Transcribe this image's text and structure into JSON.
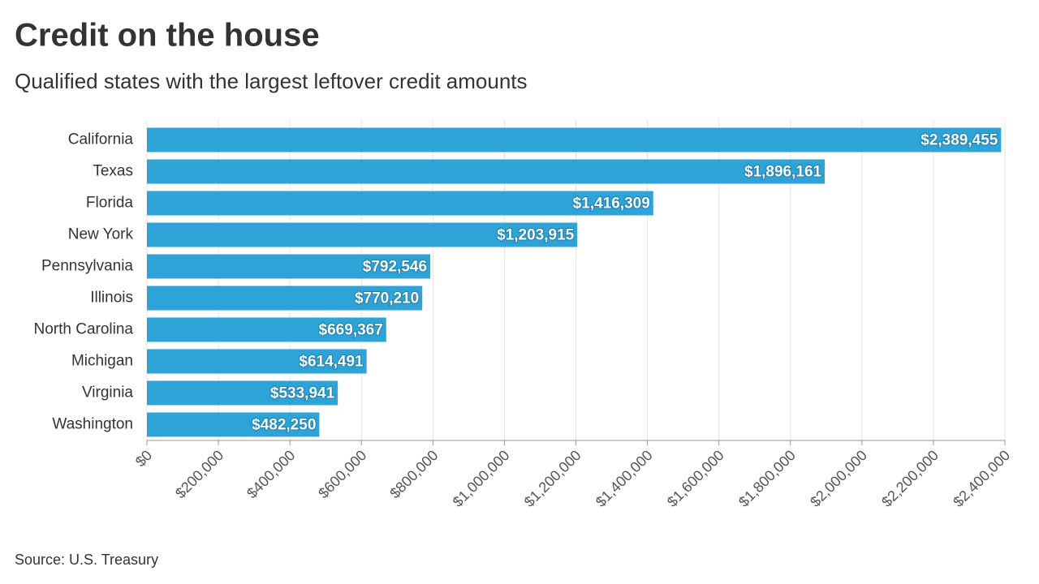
{
  "chart_data": {
    "type": "bar",
    "title": "Credit on the house",
    "subtitle": "Qualified states with the largest leftover credit amounts",
    "source": "Source: U.S. Treasury",
    "categories": [
      "California",
      "Texas",
      "Florida",
      "New York",
      "Pennsylvania",
      "Illinois",
      "North Carolina",
      "Michigan",
      "Virginia",
      "Washington"
    ],
    "values": [
      2389455,
      1896161,
      1416309,
      1203915,
      792546,
      770210,
      669367,
      614491,
      533941,
      482250
    ],
    "value_labels": [
      "$2,389,455",
      "$1,896,161",
      "$1,416,309",
      "$1,203,915",
      "$792,546",
      "$770,210",
      "$669,367",
      "$614,491",
      "$533,941",
      "$482,250"
    ],
    "color": "#2ea3d8",
    "xlim": [
      0,
      2400000
    ],
    "xticks": [
      {
        "value": 0,
        "label": "$0"
      },
      {
        "value": 200000,
        "label": "$200,000"
      },
      {
        "value": 400000,
        "label": "$400,000"
      },
      {
        "value": 600000,
        "label": "$600,000"
      },
      {
        "value": 800000,
        "label": "$800,000"
      },
      {
        "value": 1000000,
        "label": "$1,000,000"
      },
      {
        "value": 1200000,
        "label": "$1,200,000"
      },
      {
        "value": 1400000,
        "label": "$1,400,000"
      },
      {
        "value": 1600000,
        "label": "$1,600,000"
      },
      {
        "value": 1800000,
        "label": "$1,800,000"
      },
      {
        "value": 2000000,
        "label": "$2,000,000"
      },
      {
        "value": 2200000,
        "label": "$2,200,000"
      },
      {
        "value": 2400000,
        "label": "$2,400,000"
      }
    ],
    "grid": true
  }
}
